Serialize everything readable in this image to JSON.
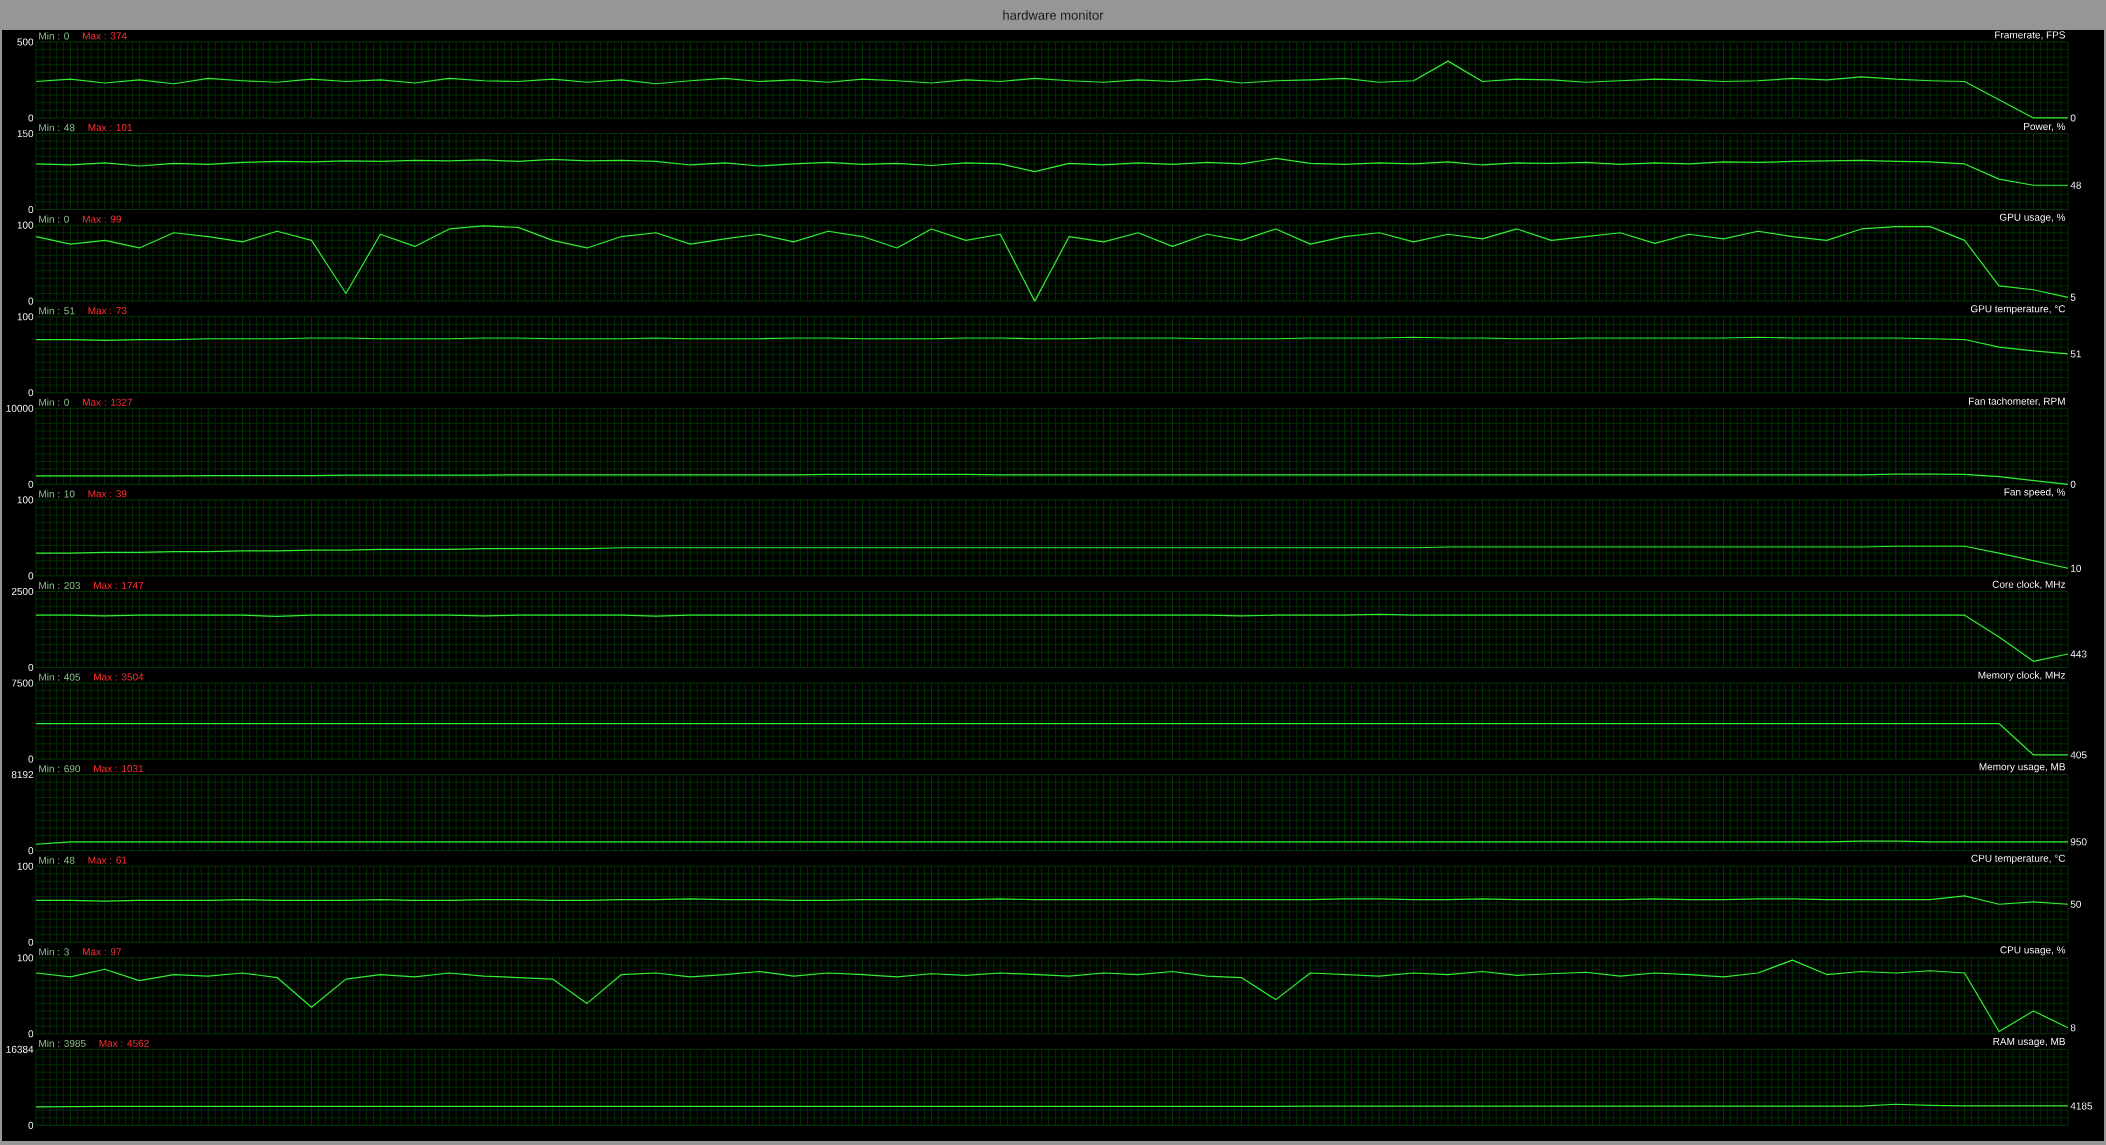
{
  "chart_data": [
    {
      "type": "other",
      "title": "hardware monitor"
    },
    {
      "type": "line",
      "title": "Framerate, FPS",
      "annotations": [
        "Min : 0",
        "Max : 374",
        "0"
      ],
      "ylim": [
        0,
        500
      ],
      "yticks": [
        0,
        500
      ],
      "grid": true,
      "color": "#33ee33",
      "categories": [
        null,
        null,
        null,
        null,
        null,
        null,
        null,
        null,
        null,
        null,
        null,
        null,
        null,
        null,
        null,
        null,
        null,
        null,
        null,
        null,
        null,
        null,
        null,
        null,
        null,
        null,
        null,
        null,
        null,
        null,
        null,
        null,
        null,
        null,
        null,
        null,
        null,
        null,
        null,
        null,
        null,
        null,
        null,
        null,
        null,
        null,
        null,
        null,
        null,
        null,
        null,
        null,
        null,
        null,
        null,
        null,
        null,
        null,
        null,
        null
      ],
      "values": [
        240,
        255,
        230,
        250,
        225,
        260,
        245,
        235,
        255,
        240,
        250,
        230,
        260,
        245,
        240,
        255,
        235,
        250,
        225,
        245,
        260,
        240,
        250,
        235,
        255,
        245,
        230,
        250,
        240,
        260,
        245,
        235,
        250,
        240,
        255,
        230,
        245,
        250,
        260,
        235,
        245,
        374,
        240,
        255,
        250,
        235,
        245,
        255,
        250,
        240,
        245,
        260,
        250,
        270,
        255,
        245,
        240,
        120,
        0,
        0
      ]
    },
    {
      "type": "line",
      "title": "Power, %",
      "annotations": [
        "Min : 48",
        "Max : 101",
        "48"
      ],
      "ylim": [
        0,
        150
      ],
      "yticks": [
        0,
        150
      ],
      "grid": true,
      "color": "#33ee33",
      "categories": [
        null,
        null,
        null,
        null,
        null,
        null,
        null,
        null,
        null,
        null,
        null,
        null,
        null,
        null,
        null,
        null,
        null,
        null,
        null,
        null,
        null,
        null,
        null,
        null,
        null,
        null,
        null,
        null,
        null,
        null,
        null,
        null,
        null,
        null,
        null,
        null,
        null,
        null,
        null,
        null,
        null,
        null,
        null,
        null,
        null,
        null,
        null,
        null,
        null,
        null,
        null,
        null,
        null,
        null,
        null,
        null,
        null,
        null,
        null,
        null
      ],
      "values": [
        90,
        88,
        92,
        86,
        91,
        89,
        93,
        95,
        94,
        96,
        95,
        97,
        96,
        98,
        95,
        99,
        96,
        97,
        95,
        88,
        92,
        86,
        90,
        93,
        89,
        91,
        87,
        92,
        90,
        75,
        91,
        88,
        92,
        89,
        93,
        90,
        101,
        91,
        89,
        92,
        90,
        94,
        88,
        92,
        91,
        93,
        89,
        92,
        90,
        94,
        93,
        95,
        96,
        97,
        95,
        94,
        90,
        60,
        48,
        48
      ]
    },
    {
      "type": "line",
      "title": "GPU usage, %",
      "annotations": [
        "Min : 0",
        "Max : 99",
        "5"
      ],
      "ylim": [
        0,
        100
      ],
      "yticks": [
        0,
        100
      ],
      "grid": true,
      "color": "#33ee33",
      "categories": [
        null,
        null,
        null,
        null,
        null,
        null,
        null,
        null,
        null,
        null,
        null,
        null,
        null,
        null,
        null,
        null,
        null,
        null,
        null,
        null,
        null,
        null,
        null,
        null,
        null,
        null,
        null,
        null,
        null,
        null,
        null,
        null,
        null,
        null,
        null,
        null,
        null,
        null,
        null,
        null,
        null,
        null,
        null,
        null,
        null,
        null,
        null,
        null,
        null,
        null,
        null,
        null,
        null,
        null,
        null,
        null,
        null,
        null,
        null,
        null
      ],
      "values": [
        85,
        75,
        80,
        70,
        90,
        85,
        78,
        92,
        80,
        10,
        88,
        72,
        95,
        99,
        97,
        80,
        70,
        85,
        90,
        75,
        82,
        88,
        78,
        92,
        85,
        70,
        95,
        80,
        88,
        0,
        85,
        78,
        90,
        72,
        88,
        80,
        95,
        75,
        85,
        90,
        78,
        88,
        82,
        95,
        80,
        85,
        90,
        76,
        88,
        82,
        92,
        85,
        80,
        95,
        98,
        98,
        80,
        20,
        15,
        5
      ]
    },
    {
      "type": "line",
      "title": "GPU temperature, °C",
      "annotations": [
        "Min : 51",
        "Max : 73",
        "51"
      ],
      "ylim": [
        0,
        100
      ],
      "yticks": [
        0,
        100
      ],
      "grid": true,
      "color": "#33ee33",
      "categories": [
        null,
        null,
        null,
        null,
        null,
        null,
        null,
        null,
        null,
        null,
        null,
        null,
        null,
        null,
        null,
        null,
        null,
        null,
        null,
        null,
        null,
        null,
        null,
        null,
        null,
        null,
        null,
        null,
        null,
        null,
        null,
        null,
        null,
        null,
        null,
        null,
        null,
        null,
        null,
        null,
        null,
        null,
        null,
        null,
        null,
        null,
        null,
        null,
        null,
        null,
        null,
        null,
        null,
        null,
        null,
        null,
        null,
        null,
        null,
        null
      ],
      "values": [
        70,
        70,
        69,
        70,
        70,
        71,
        71,
        71,
        72,
        72,
        71,
        71,
        71,
        72,
        72,
        71,
        71,
        71,
        72,
        71,
        71,
        71,
        72,
        72,
        71,
        71,
        71,
        72,
        72,
        71,
        71,
        72,
        72,
        72,
        71,
        71,
        71,
        72,
        72,
        72,
        73,
        72,
        72,
        71,
        71,
        72,
        72,
        72,
        72,
        72,
        73,
        72,
        72,
        72,
        72,
        71,
        70,
        60,
        55,
        51
      ]
    },
    {
      "type": "line",
      "title": "Fan tachometer, RPM",
      "annotations": [
        "Min : 0",
        "Max : 1327",
        "0"
      ],
      "ylim": [
        0,
        10000
      ],
      "yticks": [
        0,
        10000
      ],
      "grid": true,
      "color": "#33ee33",
      "categories": [
        null,
        null,
        null,
        null,
        null,
        null,
        null,
        null,
        null,
        null,
        null,
        null,
        null,
        null,
        null,
        null,
        null,
        null,
        null,
        null,
        null,
        null,
        null,
        null,
        null,
        null,
        null,
        null,
        null,
        null,
        null,
        null,
        null,
        null,
        null,
        null,
        null,
        null,
        null,
        null,
        null,
        null,
        null,
        null,
        null,
        null,
        null,
        null,
        null,
        null,
        null,
        null,
        null,
        null,
        null,
        null,
        null,
        null,
        null,
        null
      ],
      "values": [
        1100,
        1100,
        1100,
        1100,
        1100,
        1150,
        1150,
        1150,
        1150,
        1200,
        1200,
        1200,
        1200,
        1200,
        1250,
        1250,
        1250,
        1250,
        1250,
        1250,
        1250,
        1250,
        1250,
        1300,
        1300,
        1300,
        1300,
        1300,
        1250,
        1250,
        1250,
        1250,
        1250,
        1250,
        1250,
        1250,
        1250,
        1250,
        1250,
        1250,
        1250,
        1250,
        1250,
        1250,
        1250,
        1250,
        1250,
        1250,
        1250,
        1250,
        1250,
        1250,
        1250,
        1250,
        1327,
        1327,
        1300,
        1000,
        500,
        0
      ]
    },
    {
      "type": "line",
      "title": "Fan speed, %",
      "annotations": [
        "Min : 10",
        "Max : 39",
        "10"
      ],
      "ylim": [
        0,
        100
      ],
      "yticks": [
        0,
        100
      ],
      "grid": true,
      "color": "#33ee33",
      "categories": [
        null,
        null,
        null,
        null,
        null,
        null,
        null,
        null,
        null,
        null,
        null,
        null,
        null,
        null,
        null,
        null,
        null,
        null,
        null,
        null,
        null,
        null,
        null,
        null,
        null,
        null,
        null,
        null,
        null,
        null,
        null,
        null,
        null,
        null,
        null,
        null,
        null,
        null,
        null,
        null,
        null,
        null,
        null,
        null,
        null,
        null,
        null,
        null,
        null,
        null,
        null,
        null,
        null,
        null,
        null,
        null,
        null,
        null,
        null,
        null
      ],
      "values": [
        30,
        30,
        31,
        31,
        32,
        32,
        33,
        33,
        34,
        34,
        35,
        35,
        35,
        36,
        36,
        36,
        36,
        37,
        37,
        37,
        37,
        37,
        37,
        37,
        37,
        37,
        37,
        37,
        37,
        37,
        37,
        37,
        37,
        37,
        37,
        37,
        37,
        37,
        37,
        37,
        37,
        38,
        38,
        38,
        38,
        38,
        38,
        38,
        38,
        38,
        38,
        38,
        38,
        38,
        39,
        39,
        39,
        30,
        20,
        10
      ]
    },
    {
      "type": "line",
      "title": "Core clock, MHz",
      "annotations": [
        "Min : 203",
        "Max : 1747",
        "443"
      ],
      "ylim": [
        0,
        2500
      ],
      "yticks": [
        0,
        2500
      ],
      "grid": true,
      "color": "#33ee33",
      "categories": [
        null,
        null,
        null,
        null,
        null,
        null,
        null,
        null,
        null,
        null,
        null,
        null,
        null,
        null,
        null,
        null,
        null,
        null,
        null,
        null,
        null,
        null,
        null,
        null,
        null,
        null,
        null,
        null,
        null,
        null,
        null,
        null,
        null,
        null,
        null,
        null,
        null,
        null,
        null,
        null,
        null,
        null,
        null,
        null,
        null,
        null,
        null,
        null,
        null,
        null,
        null,
        null,
        null,
        null,
        null,
        null,
        null,
        null,
        null,
        null
      ],
      "values": [
        1720,
        1720,
        1700,
        1720,
        1720,
        1720,
        1720,
        1680,
        1720,
        1720,
        1720,
        1720,
        1720,
        1700,
        1720,
        1720,
        1720,
        1720,
        1690,
        1720,
        1720,
        1720,
        1720,
        1720,
        1720,
        1720,
        1720,
        1720,
        1720,
        1720,
        1720,
        1720,
        1720,
        1720,
        1720,
        1700,
        1720,
        1720,
        1720,
        1747,
        1720,
        1720,
        1720,
        1720,
        1720,
        1720,
        1720,
        1720,
        1720,
        1720,
        1720,
        1720,
        1720,
        1720,
        1720,
        1720,
        1720,
        1000,
        203,
        443
      ]
    },
    {
      "type": "line",
      "title": "Memory clock, MHz",
      "annotations": [
        "Min : 405",
        "Max : 3504",
        "405"
      ],
      "ylim": [
        0,
        7500
      ],
      "yticks": [
        0,
        7500
      ],
      "grid": true,
      "color": "#33ee33",
      "categories": [
        null,
        null,
        null,
        null,
        null,
        null,
        null,
        null,
        null,
        null,
        null,
        null,
        null,
        null,
        null,
        null,
        null,
        null,
        null,
        null,
        null,
        null,
        null,
        null,
        null,
        null,
        null,
        null,
        null,
        null,
        null,
        null,
        null,
        null,
        null,
        null,
        null,
        null,
        null,
        null,
        null,
        null,
        null,
        null,
        null,
        null,
        null,
        null,
        null,
        null,
        null,
        null,
        null,
        null,
        null,
        null,
        null,
        null,
        null,
        null
      ],
      "values": [
        3504,
        3504,
        3504,
        3504,
        3504,
        3504,
        3504,
        3504,
        3504,
        3504,
        3504,
        3504,
        3504,
        3504,
        3504,
        3504,
        3504,
        3504,
        3504,
        3504,
        3504,
        3504,
        3504,
        3504,
        3504,
        3504,
        3504,
        3504,
        3504,
        3504,
        3504,
        3504,
        3504,
        3504,
        3504,
        3504,
        3504,
        3504,
        3504,
        3504,
        3504,
        3504,
        3504,
        3504,
        3504,
        3504,
        3504,
        3504,
        3504,
        3504,
        3504,
        3504,
        3504,
        3504,
        3504,
        3504,
        3504,
        3504,
        405,
        405
      ]
    },
    {
      "type": "line",
      "title": "Memory usage, MB",
      "annotations": [
        "Min : 690",
        "Max : 1031",
        "950"
      ],
      "ylim": [
        0,
        8192
      ],
      "yticks": [
        0,
        8192
      ],
      "grid": true,
      "color": "#33ee33",
      "categories": [
        null,
        null,
        null,
        null,
        null,
        null,
        null,
        null,
        null,
        null,
        null,
        null,
        null,
        null,
        null,
        null,
        null,
        null,
        null,
        null,
        null,
        null,
        null,
        null,
        null,
        null,
        null,
        null,
        null,
        null,
        null,
        null,
        null,
        null,
        null,
        null,
        null,
        null,
        null,
        null,
        null,
        null,
        null,
        null,
        null,
        null,
        null,
        null,
        null,
        null,
        null,
        null,
        null,
        null,
        null,
        null,
        null,
        null,
        null,
        null
      ],
      "values": [
        690,
        950,
        950,
        950,
        950,
        950,
        950,
        950,
        950,
        950,
        950,
        950,
        950,
        950,
        950,
        950,
        950,
        950,
        950,
        950,
        950,
        950,
        950,
        950,
        950,
        950,
        950,
        950,
        950,
        950,
        950,
        950,
        950,
        950,
        950,
        950,
        950,
        950,
        950,
        950,
        950,
        950,
        950,
        950,
        950,
        950,
        950,
        950,
        950,
        950,
        950,
        950,
        950,
        1031,
        1031,
        950,
        950,
        950,
        950,
        950
      ]
    },
    {
      "type": "line",
      "title": "CPU temperature, °C",
      "annotations": [
        "Min : 48",
        "Max : 61",
        "50"
      ],
      "ylim": [
        0,
        100
      ],
      "yticks": [
        0,
        100
      ],
      "grid": true,
      "color": "#33ee33",
      "categories": [
        null,
        null,
        null,
        null,
        null,
        null,
        null,
        null,
        null,
        null,
        null,
        null,
        null,
        null,
        null,
        null,
        null,
        null,
        null,
        null,
        null,
        null,
        null,
        null,
        null,
        null,
        null,
        null,
        null,
        null,
        null,
        null,
        null,
        null,
        null,
        null,
        null,
        null,
        null,
        null,
        null,
        null,
        null,
        null,
        null,
        null,
        null,
        null,
        null,
        null,
        null,
        null,
        null,
        null,
        null,
        null,
        null,
        null,
        null,
        null
      ],
      "values": [
        55,
        55,
        54,
        55,
        55,
        55,
        56,
        55,
        55,
        55,
        56,
        55,
        55,
        56,
        56,
        55,
        55,
        56,
        56,
        57,
        56,
        56,
        55,
        55,
        56,
        56,
        56,
        56,
        57,
        56,
        56,
        56,
        56,
        56,
        56,
        56,
        56,
        56,
        57,
        57,
        56,
        56,
        57,
        56,
        56,
        56,
        56,
        57,
        56,
        56,
        57,
        57,
        56,
        56,
        56,
        56,
        61,
        50,
        53,
        50
      ]
    },
    {
      "type": "line",
      "title": "CPU usage, %",
      "annotations": [
        "Min : 3",
        "Max : 97",
        "8"
      ],
      "ylim": [
        0,
        100
      ],
      "yticks": [
        0,
        100
      ],
      "grid": true,
      "color": "#33ee33",
      "categories": [
        null,
        null,
        null,
        null,
        null,
        null,
        null,
        null,
        null,
        null,
        null,
        null,
        null,
        null,
        null,
        null,
        null,
        null,
        null,
        null,
        null,
        null,
        null,
        null,
        null,
        null,
        null,
        null,
        null,
        null,
        null,
        null,
        null,
        null,
        null,
        null,
        null,
        null,
        null,
        null,
        null,
        null,
        null,
        null,
        null,
        null,
        null,
        null,
        null,
        null,
        null,
        null,
        null,
        null,
        null,
        null,
        null,
        null,
        null,
        null
      ],
      "values": [
        80,
        75,
        85,
        70,
        78,
        76,
        80,
        74,
        35,
        72,
        78,
        75,
        80,
        76,
        74,
        72,
        40,
        78,
        80,
        75,
        78,
        82,
        76,
        80,
        78,
        75,
        79,
        77,
        80,
        78,
        76,
        80,
        78,
        82,
        76,
        74,
        45,
        80,
        78,
        76,
        80,
        78,
        82,
        77,
        79,
        81,
        76,
        80,
        78,
        75,
        80,
        97,
        78,
        82,
        80,
        83,
        80,
        3,
        30,
        8
      ]
    },
    {
      "type": "line",
      "title": "RAM usage, MB",
      "annotations": [
        "Min : 3985",
        "Max : 4562",
        "4185"
      ],
      "ylim": [
        0,
        16384
      ],
      "yticks": [
        0,
        16384
      ],
      "grid": true,
      "color": "#33ee33",
      "categories": [
        null,
        null,
        null,
        null,
        null,
        null,
        null,
        null,
        null,
        null,
        null,
        null,
        null,
        null,
        null,
        null,
        null,
        null,
        null,
        null,
        null,
        null,
        null,
        null,
        null,
        null,
        null,
        null,
        null,
        null,
        null,
        null,
        null,
        null,
        null,
        null,
        null,
        null,
        null,
        null,
        null,
        null,
        null,
        null,
        null,
        null,
        null,
        null,
        null,
        null,
        null,
        null,
        null,
        null,
        null,
        null,
        null,
        null,
        null,
        null
      ],
      "values": [
        3985,
        4050,
        4100,
        4100,
        4100,
        4100,
        4100,
        4100,
        4100,
        4100,
        4100,
        4100,
        4100,
        4100,
        4100,
        4100,
        4100,
        4100,
        4100,
        4100,
        4100,
        4100,
        4100,
        4100,
        4100,
        4100,
        4100,
        4100,
        4100,
        4100,
        4100,
        4100,
        4100,
        4100,
        4100,
        4100,
        4100,
        4150,
        4150,
        4150,
        4150,
        4150,
        4150,
        4150,
        4150,
        4150,
        4150,
        4150,
        4150,
        4150,
        4150,
        4150,
        4150,
        4150,
        4562,
        4300,
        4200,
        4185,
        4185,
        4185
      ]
    }
  ]
}
